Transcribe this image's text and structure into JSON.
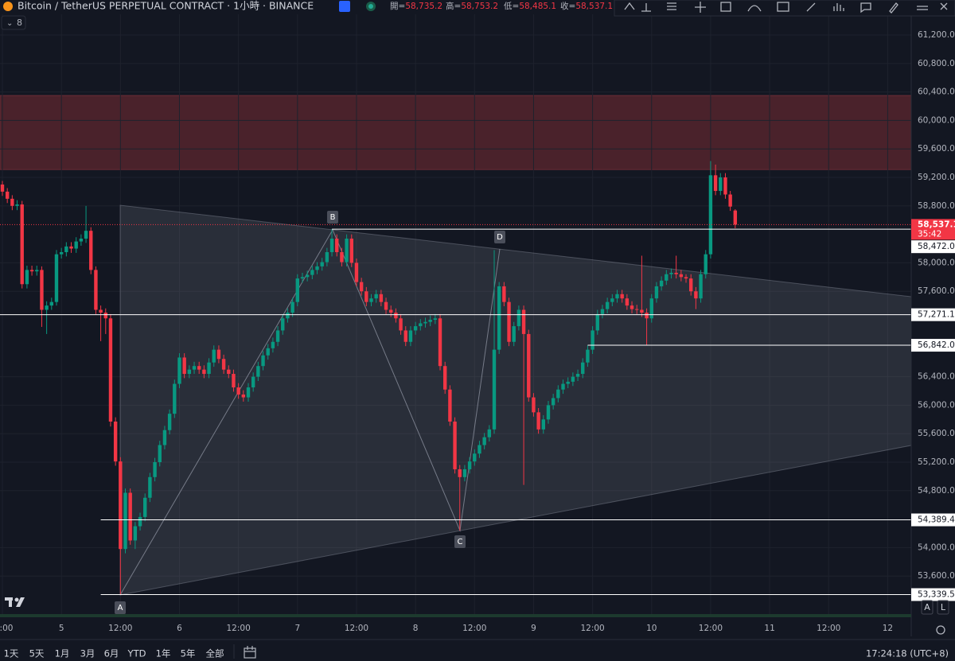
{
  "header": {
    "symbol": "Bitcoin / TetherUS PERPETUAL CONTRACT · 1小時 · BINANCE",
    "ohlc": [
      {
        "label": "開=",
        "value": "58,735.2"
      },
      {
        "label": "高=",
        "value": "58,753.2"
      },
      {
        "label": "低=",
        "value": "58,485.1"
      },
      {
        "label": "收=",
        "value": "58,537.1"
      }
    ],
    "indicators_count": "8"
  },
  "chart_data": {
    "type": "candlestick",
    "up_color": "#089981",
    "down_color": "#f23645",
    "grid": true,
    "ylim": [
      53066,
      61692
    ],
    "yticks": [
      {
        "value": 53600,
        "label": "53,600.0"
      },
      {
        "value": 54000,
        "label": "54,000.0"
      },
      {
        "value": 54800,
        "label": "54,800.0"
      },
      {
        "value": 55200,
        "label": "55,200.0"
      },
      {
        "value": 55600,
        "label": "55,600.0"
      },
      {
        "value": 56000,
        "label": "56,000.0"
      },
      {
        "value": 56400,
        "label": "56,400.0"
      },
      {
        "value": 57600,
        "label": "57,600.0"
      },
      {
        "value": 58000,
        "label": "58,000.0"
      },
      {
        "value": 58800,
        "label": "58,800.0"
      },
      {
        "value": 59200,
        "label": "59,200.0"
      },
      {
        "value": 59600,
        "label": "59,600.0"
      },
      {
        "value": 60000,
        "label": "60,000.0"
      },
      {
        "value": 60400,
        "label": "60,400.0"
      },
      {
        "value": 60800,
        "label": "60,800.0"
      },
      {
        "value": 61200,
        "label": "61,200.0"
      }
    ],
    "categories": [
      ":00",
      null,
      null,
      null,
      null,
      null,
      null,
      null,
      null,
      null,
      null,
      null,
      "5",
      null,
      null,
      null,
      null,
      null,
      null,
      null,
      null,
      null,
      null,
      null,
      "12:00",
      null,
      null,
      null,
      null,
      null,
      null,
      null,
      null,
      null,
      null,
      null,
      "6",
      null,
      null,
      null,
      null,
      null,
      null,
      null,
      null,
      null,
      null,
      null,
      "12:00",
      null,
      null,
      null,
      null,
      null,
      null,
      null,
      null,
      null,
      null,
      null,
      "7",
      null,
      null,
      null,
      null,
      null,
      null,
      null,
      null,
      null,
      null,
      null,
      "12:00",
      null,
      null,
      null,
      null,
      null,
      null,
      null,
      null,
      null,
      null,
      null,
      "8",
      null,
      null,
      null,
      null,
      null,
      null,
      null,
      null,
      null,
      null,
      null,
      "12:00",
      null,
      null,
      null,
      null,
      null,
      null,
      null,
      null,
      null,
      null,
      null,
      "9",
      null,
      null,
      null,
      null,
      null,
      null,
      null,
      null,
      null,
      null,
      null,
      "12:00",
      null,
      null,
      null,
      null,
      null,
      null,
      null,
      null,
      null,
      null,
      null,
      "10",
      null,
      null,
      null,
      null,
      null,
      null,
      null,
      null,
      null,
      null,
      null,
      "12:00",
      null,
      null,
      null,
      null,
      null,
      null,
      null,
      null,
      null,
      null,
      null,
      "11",
      null,
      null,
      null,
      null,
      null,
      null,
      null,
      null,
      null,
      null,
      null,
      "12:00",
      null,
      null,
      null,
      null,
      null,
      null,
      null,
      null,
      null,
      null,
      null,
      "12"
    ],
    "open": [
      59100,
      59000,
      58900,
      58800,
      58820,
      57700,
      57900,
      57880,
      57900,
      57340,
      57400,
      57450,
      58120,
      58150,
      58230,
      58200,
      58300,
      58340,
      58450,
      57900,
      57340,
      57300,
      57220,
      55770,
      55210,
      53980,
      54770,
      54100,
      54300,
      54430,
      54700,
      54990,
      55200,
      55440,
      55650,
      55880,
      56300,
      56670,
      56440,
      56500,
      56550,
      56500,
      56440,
      56600,
      56780,
      56650,
      56500,
      56440,
      56250,
      56150,
      56110,
      56250,
      56400,
      56550,
      56700,
      56800,
      56890,
      57050,
      57220,
      57300,
      57450,
      57780,
      57800,
      57830,
      57900,
      57950,
      58010,
      58150,
      58340,
      58150,
      58010,
      58340,
      58000,
      57730,
      57600,
      57450,
      57500,
      57560,
      57450,
      57340,
      57300,
      57220,
      57050,
      56890,
      57050,
      57110,
      57150,
      57170,
      57200,
      57220,
      56550,
      56220,
      55770,
      55100,
      54990,
      55100,
      55210,
      55320,
      55440,
      55550,
      55660,
      56780,
      57670,
      57450,
      56890,
      57110,
      57340,
      57000,
      56110,
      55900,
      55660,
      55800,
      56000,
      56100,
      56220,
      56300,
      56330,
      56400,
      56440,
      56600,
      56780,
      57050,
      57280,
      57350,
      57450,
      57500,
      57560,
      57500,
      57400,
      57350,
      57340,
      57300,
      57220,
      57500,
      57670,
      57750,
      57840,
      57860,
      57840,
      57800,
      57780,
      57600,
      57500,
      57840,
      58120,
      59230,
      59010,
      59200,
      58960,
      58735.2,
      null,
      null,
      null,
      null,
      null,
      null,
      null,
      null,
      null,
      null,
      null,
      null,
      null,
      null,
      null,
      null,
      null,
      null,
      null,
      null,
      null,
      null,
      null,
      null,
      null,
      null,
      null,
      null,
      null,
      null,
      null
    ],
    "high": [
      59150,
      59050,
      58950,
      58880,
      58870,
      57960,
      57960,
      57960,
      57950,
      57460,
      57510,
      58180,
      58210,
      58290,
      58290,
      58360,
      58400,
      58800,
      58500,
      57950,
      57400,
      57360,
      57280,
      55830,
      55270,
      54830,
      54830,
      54360,
      54490,
      54760,
      55050,
      55260,
      55500,
      55710,
      55940,
      56360,
      56730,
      56730,
      56560,
      56610,
      56610,
      56560,
      56660,
      56840,
      56840,
      56710,
      56560,
      56500,
      56310,
      56210,
      56310,
      56460,
      56610,
      56760,
      56860,
      56950,
      57110,
      57280,
      57360,
      57510,
      57840,
      57860,
      57890,
      57960,
      58010,
      58070,
      58210,
      58470,
      58400,
      58210,
      58400,
      58400,
      58060,
      57790,
      57660,
      57560,
      57620,
      57620,
      57510,
      57400,
      57360,
      57280,
      57110,
      57110,
      57170,
      57210,
      57230,
      57260,
      57280,
      57280,
      56610,
      56280,
      55830,
      55160,
      55160,
      55270,
      55380,
      55500,
      55610,
      55720,
      58180,
      57730,
      57730,
      57510,
      57170,
      57400,
      57400,
      57060,
      56170,
      55960,
      55860,
      56060,
      56160,
      56280,
      56360,
      56390,
      56460,
      56500,
      56660,
      56840,
      57110,
      57340,
      57410,
      57510,
      57560,
      57620,
      57620,
      57560,
      57460,
      57410,
      58100,
      57360,
      57560,
      57730,
      57810,
      57900,
      57920,
      58100,
      57900,
      57840,
      57840,
      57660,
      57900,
      58180,
      59430,
      59380,
      59260,
      59260,
      59010,
      58753.2,
      null,
      null,
      null,
      null,
      null,
      null,
      null,
      null,
      null,
      null,
      null,
      null,
      null,
      null,
      null,
      null,
      null,
      null,
      null,
      null,
      null,
      null,
      null,
      null,
      null,
      null,
      null,
      null,
      null,
      null,
      null
    ],
    "low": [
      58940,
      58840,
      58740,
      58740,
      57640,
      57640,
      57820,
      57820,
      57100,
      57000,
      57340,
      57400,
      58060,
      58090,
      58140,
      58140,
      58240,
      58280,
      57840,
      57280,
      56900,
      57000,
      55700,
      55150,
      53339.5,
      53920,
      54040,
      53980,
      54240,
      54370,
      54640,
      54930,
      55140,
      55380,
      55590,
      55820,
      56240,
      56380,
      56380,
      56440,
      56440,
      56380,
      56380,
      56540,
      56590,
      56440,
      56380,
      56190,
      56090,
      56050,
      56050,
      56190,
      56340,
      56490,
      56640,
      56740,
      56830,
      56990,
      57160,
      57240,
      57390,
      57720,
      57740,
      57770,
      57840,
      57890,
      57950,
      58090,
      58090,
      57950,
      57950,
      57940,
      57670,
      57540,
      57390,
      57390,
      57440,
      57390,
      57280,
      57240,
      57160,
      56990,
      56830,
      56830,
      56990,
      57050,
      57090,
      57110,
      57140,
      56490,
      56160,
      55710,
      55040,
      54240,
      54930,
      55040,
      55150,
      55260,
      55380,
      55490,
      55600,
      56720,
      57390,
      56830,
      56830,
      57050,
      54880,
      56050,
      55840,
      55600,
      55600,
      55740,
      55940,
      56040,
      56160,
      56240,
      56270,
      56340,
      56380,
      56540,
      56720,
      56990,
      57220,
      57290,
      57390,
      57440,
      57440,
      57340,
      57290,
      57280,
      57240,
      56842,
      57160,
      57440,
      57610,
      57690,
      57780,
      57780,
      57740,
      57720,
      57540,
      57350,
      57440,
      57780,
      58060,
      58950,
      58950,
      58900,
      58730,
      58485.1,
      null,
      null,
      null,
      null,
      null,
      null,
      null,
      null,
      null,
      null,
      null,
      null,
      null,
      null,
      null,
      null,
      null,
      null,
      null,
      null,
      null,
      null,
      null,
      null,
      null,
      null,
      null,
      null,
      null,
      null,
      null
    ],
    "close": [
      59000,
      58900,
      58800,
      58820,
      57700,
      57900,
      57880,
      57900,
      57340,
      57400,
      57450,
      58120,
      58150,
      58230,
      58200,
      58300,
      58340,
      58450,
      57900,
      57340,
      57300,
      57220,
      55770,
      55210,
      53980,
      54770,
      54100,
      54300,
      54430,
      54700,
      54990,
      55200,
      55440,
      55650,
      55880,
      56300,
      56670,
      56440,
      56500,
      56550,
      56500,
      56440,
      56600,
      56780,
      56650,
      56500,
      56440,
      56250,
      56150,
      56110,
      56250,
      56400,
      56550,
      56700,
      56800,
      56890,
      57050,
      57220,
      57300,
      57450,
      57780,
      57800,
      57830,
      57900,
      57950,
      58010,
      58150,
      58340,
      58150,
      58010,
      58340,
      58000,
      57730,
      57600,
      57450,
      57500,
      57560,
      57450,
      57340,
      57300,
      57220,
      57050,
      56890,
      57050,
      57110,
      57150,
      57170,
      57200,
      57220,
      56550,
      56220,
      55770,
      55100,
      54990,
      55100,
      55210,
      55320,
      55440,
      55550,
      55660,
      56780,
      57670,
      57450,
      56890,
      57110,
      57340,
      57000,
      56110,
      55900,
      55660,
      55800,
      56000,
      56100,
      56220,
      56300,
      56330,
      56400,
      56440,
      56600,
      56780,
      57050,
      57280,
      57350,
      57450,
      57500,
      57560,
      57500,
      57400,
      57350,
      57340,
      57300,
      57220,
      57500,
      57670,
      57750,
      57840,
      57860,
      57840,
      57800,
      57780,
      57600,
      57500,
      57840,
      58120,
      59230,
      59010,
      59200,
      58960,
      58790,
      58537.1,
      null,
      null,
      null,
      null,
      null,
      null,
      null,
      null,
      null,
      null,
      null,
      null,
      null,
      null,
      null,
      null,
      null,
      null,
      null,
      null,
      null,
      null,
      null,
      null,
      null,
      null,
      null,
      null,
      null,
      null,
      null
    ],
    "last_price_label": "58,537.1",
    "countdown": "35:42",
    "last_price_color": "#f23645",
    "zone": [
      59310,
      60350
    ],
    "zone_color": "#4a222b",
    "hlines": [
      {
        "value": 58472.0,
        "label": "58,472.0"
      },
      {
        "value": 57271.1,
        "label": "57,271.1"
      },
      {
        "value": 56842.0,
        "label": "56,842.0"
      },
      {
        "value": 54389.4,
        "label": "54,389.4"
      },
      {
        "value": 53339.5,
        "label": "53,339.5"
      }
    ],
    "hline_color": "#ffffff",
    "pattern_labels": [
      "A",
      "B",
      "C",
      "D"
    ]
  },
  "footer": {
    "ranges": [
      "1天",
      "5天",
      "1月",
      "3月",
      "6月",
      "YTD",
      "1年",
      "5年",
      "全部"
    ],
    "clock": "17:24:18 (UTC+8)",
    "scale_buttons": [
      "A",
      "L"
    ]
  }
}
